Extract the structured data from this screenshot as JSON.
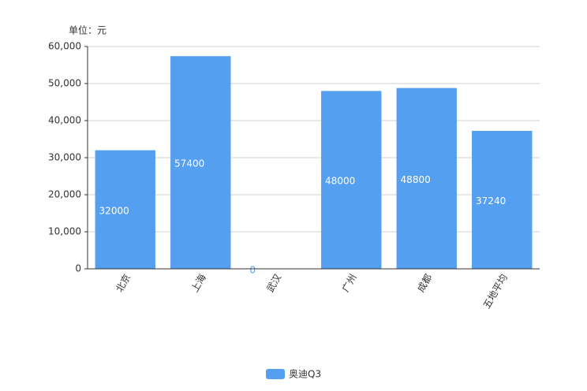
{
  "chart_data": {
    "type": "bar",
    "unit_label": "单位：元",
    "categories": [
      "北京",
      "上海",
      "武汉",
      "广州",
      "成都",
      "五地平均"
    ],
    "series": [
      {
        "name": "奥迪Q3",
        "color": "#559ff0",
        "values": [
          32000,
          57400,
          0,
          48000,
          48800,
          37240
        ]
      }
    ],
    "ylim": [
      0,
      60000
    ],
    "yticks": [
      0,
      {
        "value": 10000,
        "label": "10,000"
      },
      {
        "value": 20000,
        "label": "20,000"
      },
      {
        "value": 30000,
        "label": "30,000"
      },
      {
        "value": 40000,
        "label": "40,000"
      },
      {
        "value": 50000,
        "label": "50,000"
      },
      {
        "value": 60000,
        "label": "60,000"
      }
    ],
    "grid": true,
    "legend": "bottom"
  }
}
